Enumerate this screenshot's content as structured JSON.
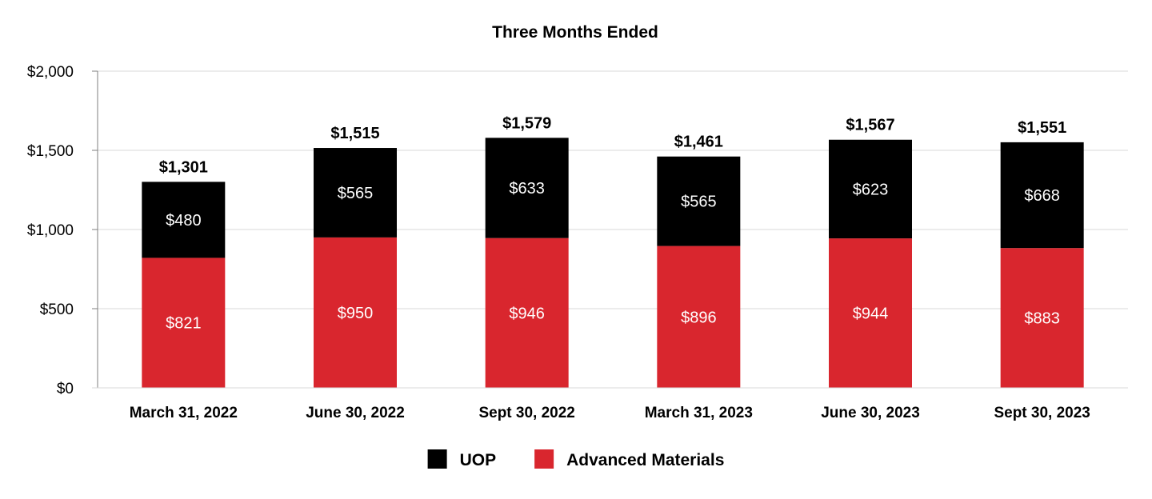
{
  "chart_data": {
    "type": "bar",
    "stacked": true,
    "title": "Three Months Ended",
    "xlabel": "",
    "ylabel": "",
    "ylim": [
      0,
      2000
    ],
    "yticks": [
      0,
      500,
      1000,
      1500,
      2000
    ],
    "ytick_labels": [
      "$0",
      "$500",
      "$1,000",
      "$1,500",
      "$2,000"
    ],
    "grid": true,
    "categories": [
      "March 31, 2022",
      "June 30, 2022",
      "Sept 30, 2022",
      "March 31, 2023",
      "June 30, 2023",
      "Sept 30, 2023"
    ],
    "series": [
      {
        "name": "Advanced Materials",
        "color": "#d9262e",
        "values": [
          821,
          950,
          946,
          896,
          944,
          883
        ],
        "labels": [
          "$821",
          "$950",
          "$946",
          "$896",
          "$944",
          "$883"
        ]
      },
      {
        "name": "UOP",
        "color": "#000000",
        "values": [
          480,
          565,
          633,
          565,
          623,
          668
        ],
        "labels": [
          "$480",
          "$565",
          "$633",
          "$565",
          "$623",
          "$668"
        ]
      }
    ],
    "totals": [
      1301,
      1515,
      1579,
      1461,
      1567,
      1551
    ],
    "total_labels": [
      "$1,301",
      "$1,515",
      "$1,579",
      "$1,461",
      "$1,567",
      "$1,551"
    ],
    "legend": {
      "position": "bottom-center",
      "items": [
        {
          "label": "UOP",
          "color": "#000000"
        },
        {
          "label": "Advanced Materials",
          "color": "#d9262e"
        }
      ]
    }
  }
}
